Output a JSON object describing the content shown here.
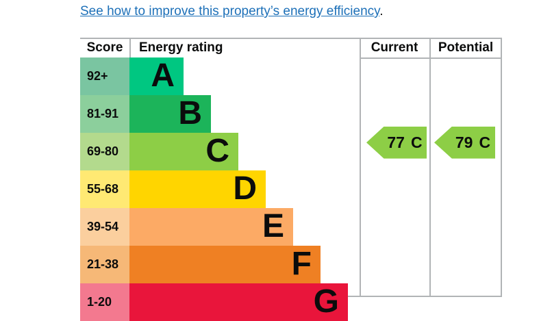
{
  "link": {
    "text": "See how to improve this property’s energy efficiency",
    "suffix": ".",
    "color": "#1d70b8"
  },
  "chart": {
    "border_color": "#b1b4b6",
    "headers": {
      "score": "Score",
      "rating": "Energy rating",
      "current": "Current",
      "potential": "Potential"
    },
    "bands": [
      {
        "letter": "A",
        "score": "92+",
        "bar_color": "#00c781",
        "score_color": "#7ac5a1"
      },
      {
        "letter": "B",
        "score": "81-91",
        "bar_color": "#1cb45a",
        "score_color": "#8ccf9c"
      },
      {
        "letter": "C",
        "score": "69-80",
        "bar_color": "#8dce46",
        "score_color": "#b3da8d"
      },
      {
        "letter": "D",
        "score": "55-68",
        "bar_color": "#ffd500",
        "score_color": "#ffe973"
      },
      {
        "letter": "E",
        "score": "39-54",
        "bar_color": "#fcaa65",
        "score_color": "#fbcf9e"
      },
      {
        "letter": "F",
        "score": "21-38",
        "bar_color": "#ef8023",
        "score_color": "#f6b877"
      },
      {
        "letter": "G",
        "score": "1-20",
        "bar_color": "#e9153b",
        "score_color": "#f3798f"
      }
    ],
    "current": {
      "value": "77",
      "band": "C",
      "band_index": 2,
      "arrow_color": "#8dce46"
    },
    "potential": {
      "value": "79",
      "band": "C",
      "band_index": 2,
      "arrow_color": "#8dce46"
    }
  },
  "chart_data": {
    "type": "bar",
    "title": "Energy rating",
    "columns": [
      "Score",
      "Energy rating",
      "Current",
      "Potential"
    ],
    "categories": [
      "A",
      "B",
      "C",
      "D",
      "E",
      "F",
      "G"
    ],
    "band_score_ranges": [
      "92+",
      "81-91",
      "69-80",
      "55-68",
      "39-54",
      "21-38",
      "1-20"
    ],
    "band_colors": [
      "#00c781",
      "#1cb45a",
      "#8dce46",
      "#ffd500",
      "#fcaa65",
      "#ef8023",
      "#e9153b"
    ],
    "bar_relative_lengths": [
      1,
      2,
      3,
      4,
      5,
      6,
      7
    ],
    "current_rating": {
      "score": 77,
      "band": "C"
    },
    "potential_rating": {
      "score": 79,
      "band": "C"
    },
    "legend_position": "none",
    "grid": false
  }
}
